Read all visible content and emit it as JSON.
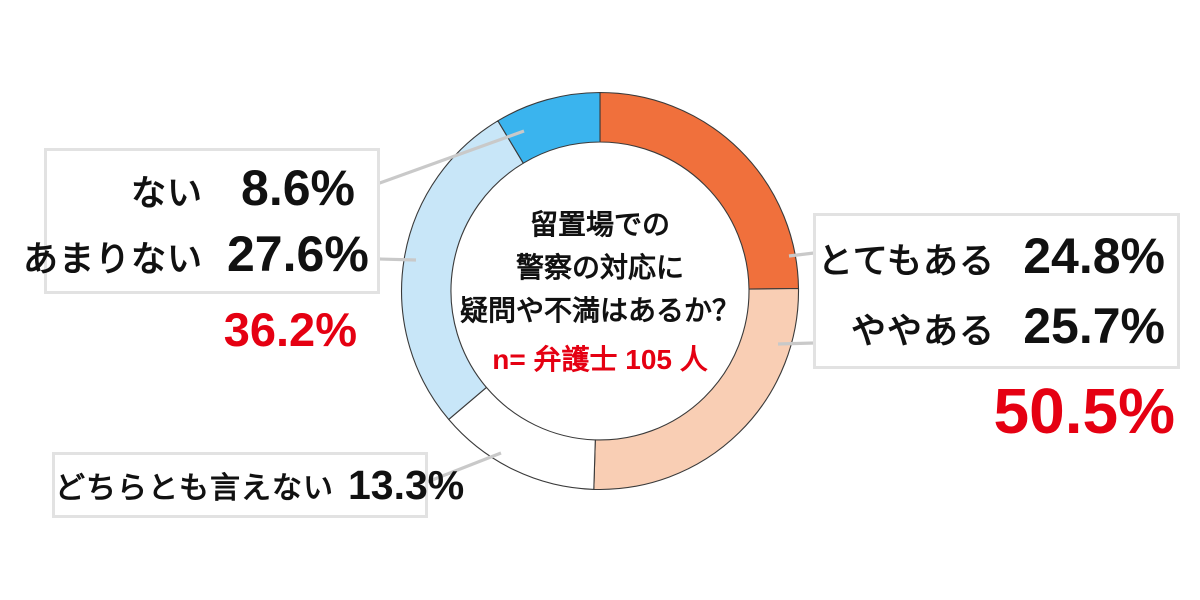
{
  "chart_data": {
    "type": "pie",
    "subtype": "donut",
    "title": "留置場での警察の対応に疑問や不満はあるか？",
    "title_lines": [
      "留置場での",
      "警察の対応に",
      "疑問や不満はあるか？"
    ],
    "sample_label": "n= 弁護士 105 人",
    "unit": "%",
    "start_angle_deg": 0,
    "direction": "clockwise",
    "grid": false,
    "legend_position": "callout-boxes",
    "segments": [
      {
        "key": "totemo-aru",
        "label": "とてもある",
        "value": 24.8,
        "display": "24.8%",
        "color": "#F0703C"
      },
      {
        "key": "yaya-aru",
        "label": "ややある",
        "value": 25.7,
        "display": "25.7%",
        "color": "#F9CEB4"
      },
      {
        "key": "dochiratomo-ienai",
        "label": "どちらとも言えない",
        "value": 13.3,
        "display": "13.3%",
        "color": "#FFFFFF"
      },
      {
        "key": "amari-nai",
        "label": "あまりない",
        "value": 27.6,
        "display": "27.6%",
        "color": "#C8E6F8"
      },
      {
        "key": "nai",
        "label": "ない",
        "value": 8.6,
        "display": "8.6%",
        "color": "#3AB4EE"
      }
    ],
    "group_totals": [
      {
        "key": "aru-total",
        "value": 50.5,
        "display": "50.5%",
        "side": "right"
      },
      {
        "key": "nai-total",
        "value": 36.2,
        "display": "36.2%",
        "side": "left"
      }
    ]
  },
  "colors": {
    "accent-red": "#E50012",
    "leader-gray": "#C9C9C9",
    "segment-outline": "#3A3A3A",
    "box-border": "#E2E2E2",
    "text-black": "#111111",
    "background": "#FFFFFF"
  }
}
